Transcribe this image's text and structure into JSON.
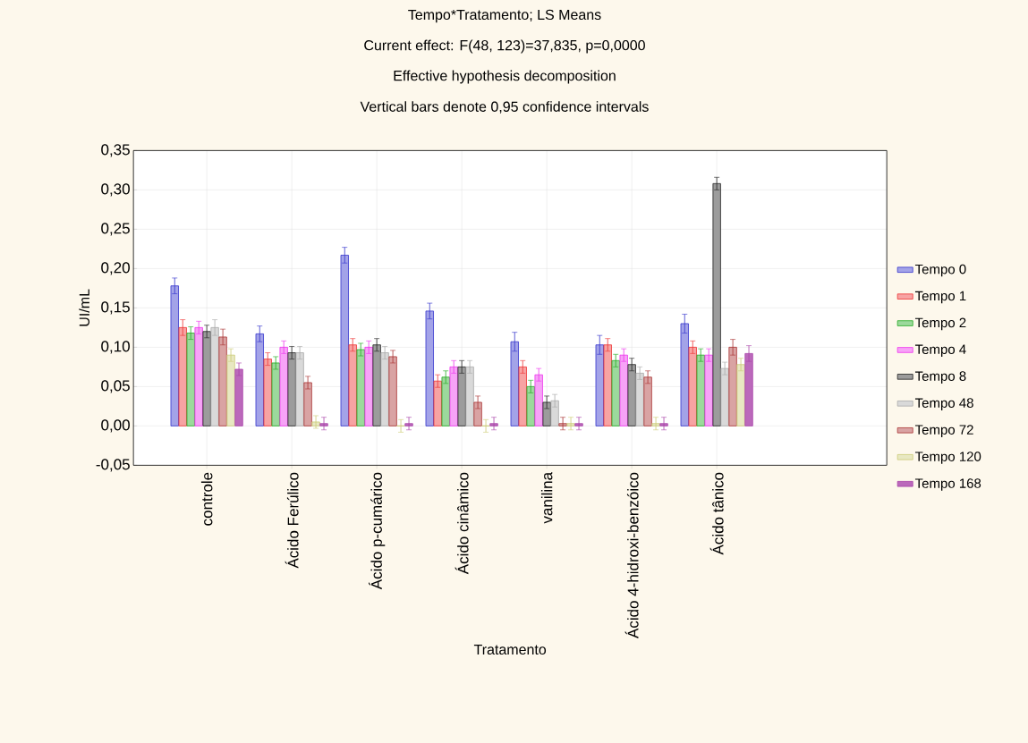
{
  "chart_data": {
    "type": "bar",
    "title": "Tempo*Tratamento; LS Means",
    "subtitle": "Current effect: F(48, 123)=37,835, p=0,0000",
    "annotations": [
      "Effective hypothesis decomposition",
      "Vertical bars denote 0,95 confidence intervals"
    ],
    "xlabel": "Tratamento",
    "ylabel": "UI/mL",
    "categories": [
      "controle",
      "Ácido Ferúlico",
      "Ácido p-cumárico",
      "Ácido cinâmico",
      "vanilina",
      "Ácido 4-hidroxi-benzóico",
      "Ácido tânico"
    ],
    "series": [
      {
        "name": "Tempo 0",
        "color": "#3333cc",
        "values": [
          0.178,
          0.117,
          0.217,
          0.146,
          0.107,
          0.103,
          0.13
        ],
        "errors": [
          0.01,
          0.01,
          0.01,
          0.01,
          0.012,
          0.012,
          0.012
        ]
      },
      {
        "name": "Tempo 1",
        "color": "#ee3333",
        "values": [
          0.125,
          0.085,
          0.103,
          0.057,
          0.075,
          0.103,
          0.1
        ],
        "errors": [
          0.01,
          0.008,
          0.008,
          0.008,
          0.008,
          0.008,
          0.008
        ]
      },
      {
        "name": "Tempo 2",
        "color": "#22aa22",
        "values": [
          0.118,
          0.08,
          0.097,
          0.062,
          0.05,
          0.083,
          0.09
        ],
        "errors": [
          0.008,
          0.008,
          0.008,
          0.008,
          0.008,
          0.008,
          0.008
        ]
      },
      {
        "name": "Tempo 4",
        "color": "#ee33ee",
        "values": [
          0.125,
          0.1,
          0.1,
          0.075,
          0.065,
          0.09,
          0.09
        ],
        "errors": [
          0.008,
          0.008,
          0.008,
          0.008,
          0.008,
          0.008,
          0.008
        ]
      },
      {
        "name": "Tempo 8",
        "color": "#222222",
        "values": [
          0.12,
          0.093,
          0.103,
          0.075,
          0.03,
          0.078,
          0.308
        ],
        "errors": [
          0.008,
          0.008,
          0.008,
          0.008,
          0.008,
          0.008,
          0.008
        ]
      },
      {
        "name": "Tempo 48",
        "color": "#aaaaaa",
        "values": [
          0.125,
          0.093,
          0.093,
          0.075,
          0.032,
          0.067,
          0.073
        ],
        "errors": [
          0.01,
          0.008,
          0.008,
          0.008,
          0.008,
          0.008,
          0.008
        ]
      },
      {
        "name": "Tempo 72",
        "color": "#aa3333",
        "values": [
          0.113,
          0.055,
          0.088,
          0.03,
          0.003,
          0.062,
          0.1
        ],
        "errors": [
          0.01,
          0.008,
          0.008,
          0.008,
          0.008,
          0.008,
          0.01
        ]
      },
      {
        "name": "Tempo 120",
        "color": "#cccc77",
        "values": [
          0.09,
          0.005,
          0.0,
          0.0,
          0.003,
          0.003,
          0.078
        ],
        "errors": [
          0.008,
          0.008,
          0.008,
          0.008,
          0.008,
          0.008,
          0.008
        ]
      },
      {
        "name": "Tempo 168",
        "color": "#aa44aa",
        "values": [
          0.072,
          0.003,
          0.003,
          0.003,
          0.003,
          0.003,
          0.092
        ],
        "errors": [
          0.008,
          0.008,
          0.008,
          0.008,
          0.008,
          0.008,
          0.01
        ]
      }
    ],
    "ylim": [
      -0.05,
      0.35
    ],
    "yticks": [
      {
        "value": -0.05,
        "label": "-0,05"
      },
      {
        "value": 0.0,
        "label": "0,00"
      },
      {
        "value": 0.05,
        "label": "0,05"
      },
      {
        "value": 0.1,
        "label": "0,10"
      },
      {
        "value": 0.15,
        "label": "0,15"
      },
      {
        "value": 0.2,
        "label": "0,20"
      },
      {
        "value": 0.25,
        "label": "0,25"
      },
      {
        "value": 0.3,
        "label": "0,30"
      },
      {
        "value": 0.35,
        "label": "0,35"
      }
    ],
    "grid": true,
    "legend": "right"
  }
}
